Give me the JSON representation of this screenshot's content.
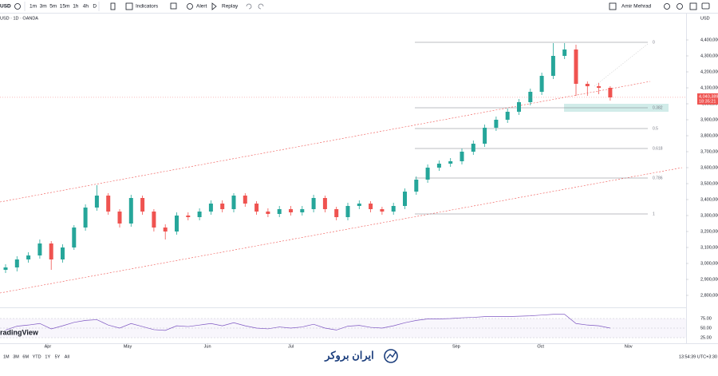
{
  "toolbar": {
    "symbol": "USD",
    "intervals": [
      "1m",
      "3m",
      "5m",
      "15m",
      "1h",
      "4h",
      "D"
    ],
    "indicators": "Indicators",
    "alert": "Alert",
    "replay": "Replay",
    "user": "Amir Mehrad"
  },
  "legend": "USD · 1D · OANDA",
  "currency": "USD",
  "watermark": "radingView",
  "ranges": [
    "1M",
    "3M",
    "6M",
    "YTD",
    "1Y",
    "5Y",
    "All"
  ],
  "clock": "13:54:39 UTC+3:30",
  "brand": "ایران بروکر",
  "chart_data": {
    "type": "candlestick",
    "up_color": "#26a69a",
    "down_color": "#ef5350",
    "open": [
      2960000,
      2975000,
      3025000,
      3050000,
      3125000,
      3025000,
      3100000,
      3225000,
      3350000,
      3425000,
      3325000,
      3250000,
      3410000,
      3325000,
      3225000,
      3200000,
      3300000,
      3290000,
      3325000,
      3375000,
      3340000,
      3425000,
      3375000,
      3325000,
      3310000,
      3340000,
      3320000,
      3340000,
      3410000,
      3340000,
      3290000,
      3360000,
      3375000,
      3340000,
      3325000,
      3360000,
      3450000,
      3525000,
      3600000,
      3625000,
      3640000,
      3700000,
      3750000,
      3850000,
      3900000,
      3950000,
      4010000,
      4075000,
      4175000,
      4300000,
      4340000,
      4125000,
      4110000,
      4100000
    ],
    "high": [
      2995000,
      3045000,
      3070000,
      3150000,
      3140000,
      3120000,
      3240000,
      3370000,
      3490000,
      3440000,
      3340000,
      3430000,
      3425000,
      3340000,
      3245000,
      3320000,
      3320000,
      3345000,
      3395000,
      3395000,
      3440000,
      3440000,
      3390000,
      3345000,
      3360000,
      3360000,
      3360000,
      3430000,
      3425000,
      3355000,
      3380000,
      3395000,
      3390000,
      3355000,
      3380000,
      3470000,
      3545000,
      3620000,
      3645000,
      3660000,
      3720000,
      3770000,
      3870000,
      3920000,
      3970000,
      4030000,
      4095000,
      4195000,
      4380000,
      4380000,
      4370000,
      4140000,
      4130000,
      4110000
    ],
    "low": [
      2940000,
      2950000,
      3005000,
      3030000,
      2960000,
      3005000,
      3085000,
      3205000,
      3330000,
      3305000,
      3225000,
      3230000,
      3305000,
      3200000,
      3150000,
      3180000,
      3270000,
      3270000,
      3305000,
      3320000,
      3320000,
      3355000,
      3305000,
      3290000,
      3290000,
      3300000,
      3300000,
      3320000,
      3320000,
      3270000,
      3270000,
      3340000,
      3320000,
      3305000,
      3305000,
      3340000,
      3430000,
      3505000,
      3580000,
      3605000,
      3620000,
      3680000,
      3730000,
      3830000,
      3880000,
      3930000,
      3990000,
      4055000,
      4155000,
      4280000,
      4050000,
      4050000,
      4060000,
      4020000
    ],
    "close": [
      2975000,
      3025000,
      3050000,
      3125000,
      3025000,
      3100000,
      3225000,
      3350000,
      3425000,
      3325000,
      3250000,
      3410000,
      3325000,
      3225000,
      3200000,
      3300000,
      3290000,
      3325000,
      3375000,
      3340000,
      3425000,
      3375000,
      3325000,
      3310000,
      3340000,
      3320000,
      3340000,
      3410000,
      3340000,
      3290000,
      3360000,
      3375000,
      3340000,
      3325000,
      3360000,
      3450000,
      3525000,
      3600000,
      3625000,
      3640000,
      3700000,
      3750000,
      3850000,
      3900000,
      3950000,
      4010000,
      4075000,
      4175000,
      4300000,
      4340000,
      4125000,
      4110000,
      4100000,
      4040000
    ],
    "xticks": [
      {
        "value": 3.7,
        "label": "Apr"
      },
      {
        "value": 10.7,
        "label": "May"
      },
      {
        "value": 17.7,
        "label": "Jun"
      },
      {
        "value": 25,
        "label": "Jul"
      },
      {
        "value": 39.5,
        "label": "Sep"
      },
      {
        "value": 46.9,
        "label": "Oct"
      },
      {
        "value": 54.6,
        "label": "Nov"
      }
    ],
    "ylim": [
      2725000,
      4550000
    ],
    "yticks": [
      {
        "value": 2800000,
        "label": "2,800,000"
      },
      {
        "value": 2900000,
        "label": "2,900,000"
      },
      {
        "value": 3000000,
        "label": "3,000,000"
      },
      {
        "value": 3100000,
        "label": "3,100,000"
      },
      {
        "value": 3200000,
        "label": "3,200,000"
      },
      {
        "value": 3300000,
        "label": "3,300,000"
      },
      {
        "value": 3400000,
        "label": "3,400,000"
      },
      {
        "value": 3500000,
        "label": "3,500,000"
      },
      {
        "value": 3600000,
        "label": "3,600,000"
      },
      {
        "value": 3700000,
        "label": "3,700,000"
      },
      {
        "value": 3800000,
        "label": "3,800,000"
      },
      {
        "value": 3900000,
        "label": "3,900,000"
      },
      {
        "value": 4000000,
        "label": "4,000,000"
      },
      {
        "value": 4100000,
        "label": "4,100,000"
      },
      {
        "value": 4200000,
        "label": "4,200,000"
      },
      {
        "value": 4300000,
        "label": "4,300,000"
      },
      {
        "value": 4400000,
        "label": "4,400,000"
      }
    ],
    "fib_levels": [
      {
        "value": 4385000,
        "label": "0"
      },
      {
        "value": 3975000,
        "label": "0.382"
      },
      {
        "value": 3845000,
        "label": "0.5"
      },
      {
        "value": 3720000,
        "label": "0.618"
      },
      {
        "value": 3535000,
        "label": "0.786"
      },
      {
        "value": 3310000,
        "label": "1"
      }
    ],
    "price_label": {
      "value": 4040389,
      "label": "4,040,389"
    },
    "countdown": "18:35:21",
    "rsi": {
      "color": "#7e57c2",
      "values": [
        45,
        55,
        58,
        62,
        48,
        56,
        65,
        70,
        72,
        58,
        50,
        62,
        54,
        46,
        44,
        56,
        54,
        58,
        62,
        56,
        64,
        56,
        50,
        48,
        53,
        50,
        53,
        60,
        50,
        45,
        55,
        57,
        52,
        50,
        56,
        64,
        70,
        74,
        74,
        75,
        77,
        78,
        80,
        80,
        80,
        81,
        82,
        84,
        86,
        86,
        62,
        58,
        56,
        50
      ],
      "ylim": [
        0,
        100
      ],
      "yticks": [
        {
          "value": 75,
          "label": "75.00"
        },
        {
          "value": 50,
          "label": "50.00"
        },
        {
          "value": 25,
          "label": "25.00"
        }
      ]
    }
  }
}
